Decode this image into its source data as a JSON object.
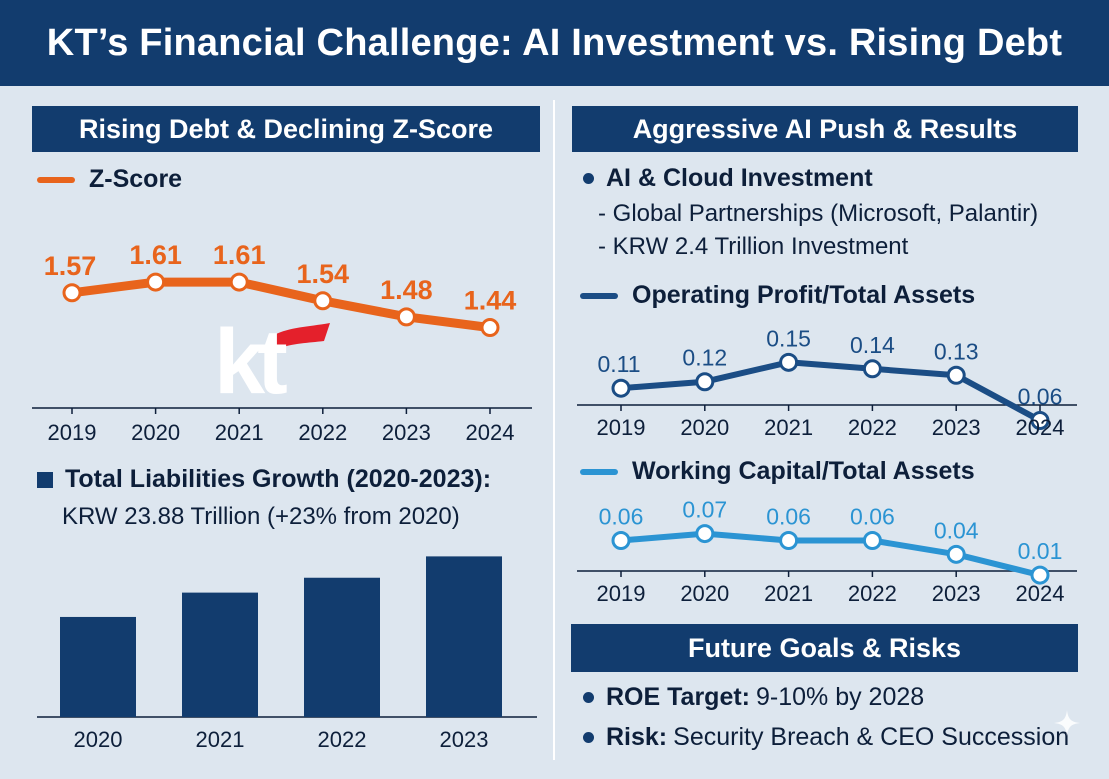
{
  "title": "KT’s Financial Challenge: AI Investment vs. Rising Debt",
  "left": {
    "banner": "Rising Debt & Declining Z-Score",
    "zscore_legend": "Z-Score",
    "liabilities_heading": "Total Liabilities Growth (2020-2023):",
    "liabilities_detail": "KRW 23.88 Trillion (+23% from 2020)"
  },
  "right": {
    "banner": "Aggressive AI Push & Results",
    "ai_heading": "AI & Cloud Investment",
    "ai_points": [
      "- Global Partnerships (Microsoft, Palantir)",
      "- KRW 2.4 Trillion Investment"
    ],
    "op_legend": "Operating Profit/Total Assets",
    "wc_legend": "Working Capital/Total Assets",
    "future_banner": "Future Goals & Risks",
    "goals": [
      {
        "label": "ROE Target:",
        "text": "9-10% by 2028"
      },
      {
        "label": "Risk:",
        "text": "Security Breach & CEO Succession"
      }
    ]
  },
  "logo_text": "kt",
  "colors": {
    "navy": "#123c6e",
    "orange": "#e8641c",
    "dark_blue": "#1b4d85",
    "light_blue": "#2b94d3",
    "background": "#dde6ef",
    "logo_red": "#e4202b"
  },
  "chart_data": [
    {
      "id": "zscore",
      "type": "line",
      "title": "Z-Score",
      "x": [
        "2019",
        "2020",
        "2021",
        "2022",
        "2023",
        "2024"
      ],
      "values": [
        1.57,
        1.61,
        1.61,
        1.54,
        1.48,
        1.44
      ],
      "labels": [
        "1.57",
        "1.61",
        "1.61",
        "1.54",
        "1.48",
        "1.44"
      ],
      "ylim": [
        1.3,
        1.7
      ],
      "color": "#e8641c"
    },
    {
      "id": "liabilities",
      "type": "bar",
      "title": "Total Liabilities Growth (2020-2023)",
      "categories": [
        "2020",
        "2021",
        "2022",
        "2023"
      ],
      "values": [
        19.4,
        21.2,
        22.3,
        23.88
      ],
      "ylim": [
        12,
        24.5
      ],
      "color": "#123c6e"
    },
    {
      "id": "op_profit",
      "type": "line",
      "title": "Operating Profit/Total Assets",
      "x": [
        "2019",
        "2020",
        "2021",
        "2022",
        "2023",
        "2024"
      ],
      "values": [
        0.11,
        0.12,
        0.15,
        0.14,
        0.13,
        0.06
      ],
      "labels": [
        "0.11",
        "0.12",
        "0.15",
        "0.14",
        "0.13",
        "0.06"
      ],
      "ylim": [
        0.05,
        0.2
      ],
      "color": "#1b4d85"
    },
    {
      "id": "working_capital",
      "type": "line",
      "title": "Working Capital/Total Assets",
      "x": [
        "2019",
        "2020",
        "2021",
        "2022",
        "2023",
        "2024"
      ],
      "values": [
        0.06,
        0.07,
        0.06,
        0.06,
        0.04,
        0.01
      ],
      "labels": [
        "0.06",
        "0.07",
        "0.06",
        "0.06",
        "0.04",
        "0.01"
      ],
      "ylim": [
        0.0,
        0.12
      ],
      "color": "#2b94d3"
    }
  ]
}
